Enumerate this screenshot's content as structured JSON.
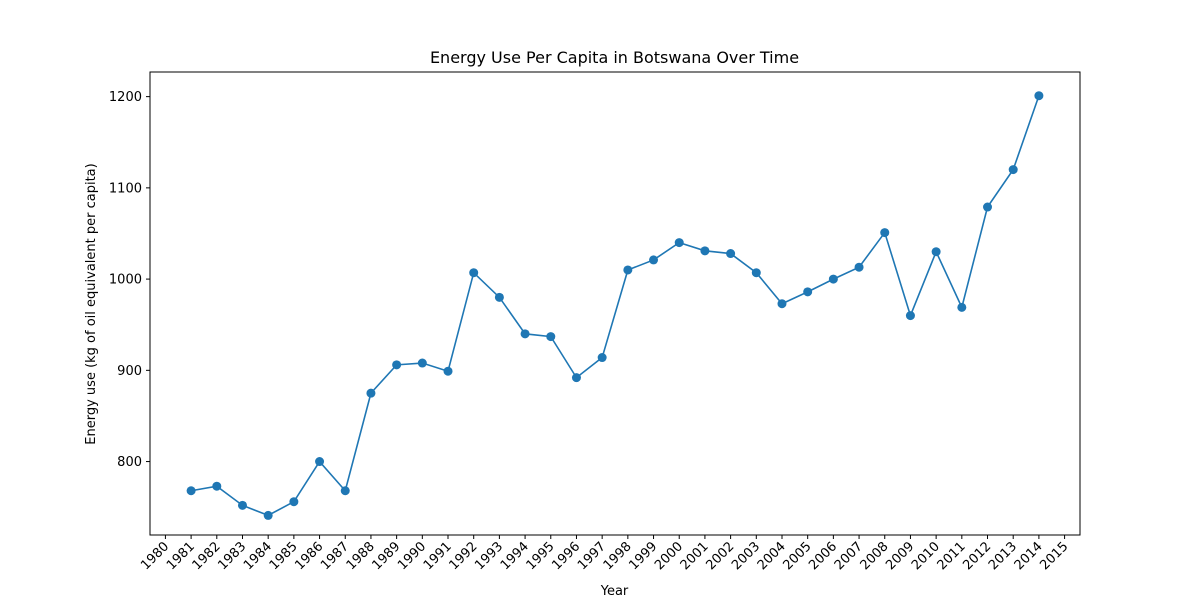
{
  "chart_data": {
    "type": "line",
    "title": "Energy Use Per Capita in Botswana Over Time",
    "xlabel": "Year",
    "ylabel": "Energy use (kg of oil equivalent per capita)",
    "x_ticks": [
      "1980",
      "1981",
      "1982",
      "1983",
      "1984",
      "1985",
      "1986",
      "1987",
      "1988",
      "1989",
      "1990",
      "1991",
      "1992",
      "1993",
      "1994",
      "1995",
      "1996",
      "1997",
      "1998",
      "1999",
      "2000",
      "2001",
      "2002",
      "2003",
      "2004",
      "2005",
      "2006",
      "2007",
      "2008",
      "2009",
      "2010",
      "2011",
      "2012",
      "2013",
      "2014",
      "2015"
    ],
    "y_ticks": [
      800,
      900,
      1000,
      1100,
      1200
    ],
    "xlim": [
      1979.4,
      2015.6
    ],
    "ylim": [
      719.5,
      1227
    ],
    "grid": false,
    "color": "#1f77b4",
    "x": [
      1981,
      1982,
      1983,
      1984,
      1985,
      1986,
      1987,
      1988,
      1989,
      1990,
      1991,
      1992,
      1993,
      1994,
      1995,
      1996,
      1997,
      1998,
      1999,
      2000,
      2001,
      2002,
      2003,
      2004,
      2005,
      2006,
      2007,
      2008,
      2009,
      2010,
      2011,
      2012,
      2013,
      2014
    ],
    "y": [
      768,
      773,
      752,
      741,
      756,
      800,
      768,
      875,
      906,
      908,
      899,
      1007,
      980,
      940,
      937,
      892,
      914,
      1010,
      1021,
      1040,
      1031,
      1028,
      1007,
      973,
      986,
      1000,
      1013,
      1051,
      960,
      1030,
      969,
      1079,
      1120,
      1201
    ]
  }
}
